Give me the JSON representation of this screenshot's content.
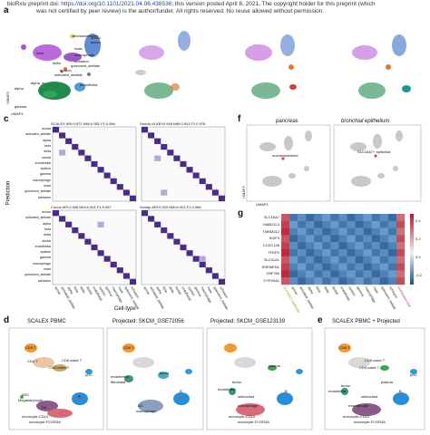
{
  "header": {
    "preprint_prefix": "bioRxiv preprint doi:",
    "doi": "https://doi.org/10.1101/2021.04.06.438536",
    "line1_rest": "; this version posted April 8, 2021. The copyright holder for this preprint (which",
    "line2": "was not certified by peer review) is the author/funder. All rights reserved. No reuse allowed without permission."
  },
  "panel_a": {
    "letter": "a",
    "axis_y": "UMAP2",
    "axis_x": "UMAP1",
    "labels": [
      "uncharacterized",
      "mast",
      "beta",
      "macrophage",
      "schwann",
      "quiescent_stellate",
      "epsilon",
      "activated_stellate",
      "delta",
      "alpha_er",
      "alpha",
      "gamma",
      "endothelial",
      "ductal",
      "acinar"
    ]
  },
  "panel_c": {
    "letter": "c",
    "xlabel": "Cell-type",
    "ylabel": "Prediction",
    "cell_types": [
      "acinar",
      "activated_stellate",
      "alpha",
      "beta",
      "delta",
      "ductal",
      "endothelial",
      "epsilon",
      "gamma",
      "macrophage",
      "mast",
      "quiescent_stellate",
      "schwann"
    ],
    "subplots": [
      {
        "name": "SCALEX",
        "ari": "ARI:0.972",
        "nmi": "NMI:0.951",
        "f1": "F1:0.984"
      },
      {
        "name": "Seurat v3",
        "ari": "ARI:0.948",
        "nmi": "NMI:0.913",
        "f1": "F1:0.978"
      },
      {
        "name": "Conos",
        "ari": "ARI:0.936",
        "nmi": "NMI:0.901",
        "f1": "F1:0.967"
      },
      {
        "name": "Scmap",
        "ari": "ARI:0.920",
        "nmi": "NMI:0.902",
        "f1": "F1:0.966"
      }
    ]
  },
  "panel_f": {
    "letter": "f",
    "left_title": "pancreas",
    "right_title": "bronchial epithelium",
    "left_label": "uncharacterized",
    "right_label": "SLC16A7+ epithelial",
    "axis_y": "UMAP2",
    "axis_x": "UMAP1"
  },
  "panel_g": {
    "letter": "g",
    "genes": [
      "SLC16A7",
      "MAB21L3",
      "TMEM212",
      "IKZF3",
      "CCDC146",
      "TFDP2",
      "SLC31A1",
      "KREMEN1",
      "ZNF780",
      "CYP20A1"
    ],
    "columns": [
      "SLC16A7+ epithelial",
      "acinar",
      "activated_stellate",
      "alpha",
      "beta",
      "delta",
      "ductal",
      "endothelial",
      "epsilon",
      "gamma",
      "macrophage",
      "mast",
      "quiescent_stellate",
      "schwann",
      "uncharacterized"
    ],
    "colorbar_ticks": [
      "0.4",
      "0.2",
      "0.0",
      "-0.2"
    ],
    "colors": {
      "high": "#b2182b",
      "low": "#1a4f8f"
    }
  },
  "panel_d": {
    "letter": "d",
    "titles": [
      "SCALEX PBMC",
      "Projected: SKCM_GSE72056",
      "Projected: SKCM_GSE123139"
    ],
    "pbmc_labels": [
      "CD8 T",
      "CD4 T",
      "CD8 naive T",
      "CD4 naive T",
      "pDC",
      "HSC",
      "Megakaryocyte",
      "B",
      "DC",
      "monocyte-CD14",
      "monocyte-FCGR3A"
    ],
    "proj1_labels": [
      "CD8 T",
      "B",
      "endothelial",
      "tumor",
      "fibroblast",
      "DC",
      "macrophage"
    ],
    "proj2_labels": [
      "B",
      "plasma",
      "tumor",
      "endothelial",
      "osteoclast",
      "macrophage",
      "monocyte-CD14",
      "monocyte-FCGR3A"
    ]
  },
  "panel_e": {
    "letter": "e",
    "title": "SCALEX PBMC + Projected",
    "labels": [
      "CD8 T",
      "CD4 naive T",
      "CD8 naive T",
      "pDC",
      "plasma",
      "B",
      "osteoclast",
      "tumor",
      "macrophage",
      "endothelial",
      "monocyte-CD14",
      "monocyte-FCGR3A"
    ]
  }
}
